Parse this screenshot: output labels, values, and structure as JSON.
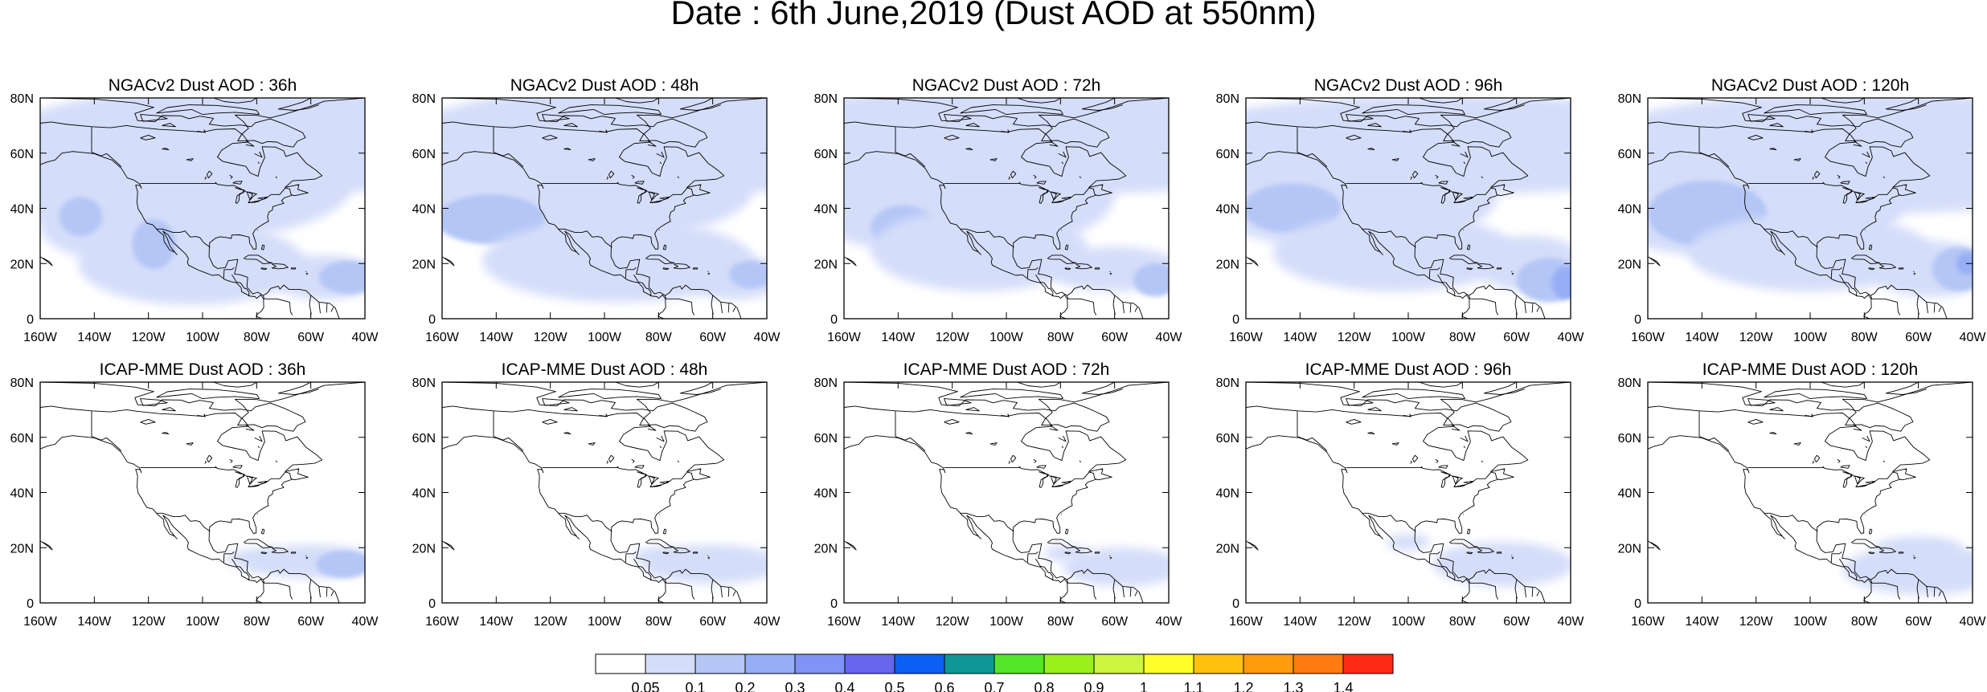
{
  "title": "Date : 6th June,2019 (Dust AOD at 550nm)",
  "chart_data": {
    "type": "heatmap",
    "title": "Date : 6th June,2019 (Dust AOD at 550nm)",
    "grid": false,
    "legend_placement": "bottom-center",
    "x_ticks": [
      "160W",
      "140W",
      "120W",
      "100W",
      "80W",
      "60W",
      "40W"
    ],
    "y_ticks": [
      "0",
      "20N",
      "40N",
      "60N",
      "80N"
    ],
    "xlim": [
      -160,
      -40
    ],
    "ylim": [
      0,
      80
    ],
    "rows": [
      {
        "model": "NGACv2",
        "panels": [
          {
            "title": "NGACv2 Dust AOD : 36h",
            "lead": "36h"
          },
          {
            "title": "NGACv2 Dust AOD : 48h",
            "lead": "48h"
          },
          {
            "title": "NGACv2 Dust AOD : 72h",
            "lead": "72h"
          },
          {
            "title": "NGACv2 Dust AOD : 96h",
            "lead": "96h"
          },
          {
            "title": "NGACv2 Dust AOD : 120h",
            "lead": "120h"
          }
        ]
      },
      {
        "model": "ICAP-MME",
        "panels": [
          {
            "title": "ICAP-MME Dust AOD : 36h",
            "lead": "36h"
          },
          {
            "title": "ICAP-MME Dust AOD : 48h",
            "lead": "48h"
          },
          {
            "title": "ICAP-MME Dust AOD : 72h",
            "lead": "72h"
          },
          {
            "title": "ICAP-MME Dust AOD : 96h",
            "lead": "96h"
          },
          {
            "title": "ICAP-MME Dust AOD : 120h",
            "lead": "120h"
          }
        ]
      }
    ],
    "colorbar": {
      "levels": [
        "0.05",
        "0.1",
        "0.2",
        "0.3",
        "0.4",
        "0.5",
        "0.6",
        "0.7",
        "0.8",
        "0.9",
        "1",
        "1.1",
        "1.2",
        "1.3",
        "1.4"
      ],
      "colors": [
        "#ffffff",
        "#d4ddf9",
        "#b4c6f6",
        "#96aef5",
        "#8193f5",
        "#6666ee",
        "#0b5ff5",
        "#0f9797",
        "#55e52a",
        "#9af01a",
        "#cbf53f",
        "#ffff2a",
        "#ffc20e",
        "#ff9c0c",
        "#ff7a10",
        "#ff2b14"
      ]
    }
  }
}
